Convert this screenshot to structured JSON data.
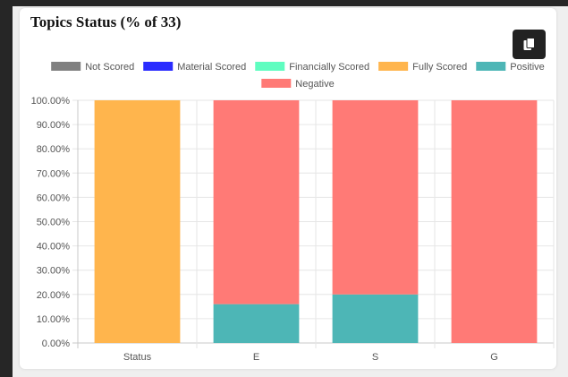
{
  "card": {
    "title": "Topics Status (% of 33)"
  },
  "icons": {
    "copy": "copy-icon"
  },
  "chart_data": {
    "type": "bar",
    "stacked": true,
    "categories": [
      "Status",
      "E",
      "S",
      "G"
    ],
    "series": [
      {
        "name": "Not Scored",
        "color": "#808080",
        "values": [
          0,
          0,
          0,
          0
        ]
      },
      {
        "name": "Material Scored",
        "color": "#2a2cff",
        "values": [
          0,
          0,
          0,
          0
        ]
      },
      {
        "name": "Financially Scored",
        "color": "#5ffdc0",
        "values": [
          0,
          0,
          0,
          0
        ]
      },
      {
        "name": "Fully Scored",
        "color": "#ffb54d",
        "values": [
          100,
          0,
          0,
          0
        ]
      },
      {
        "name": "Positive",
        "color": "#4db6b6",
        "values": [
          0,
          16,
          20,
          0
        ]
      },
      {
        "name": "Negative",
        "color": "#ff7a76",
        "values": [
          0,
          84,
          80,
          100
        ]
      }
    ],
    "ylim": [
      0,
      100
    ],
    "yticks": [
      "0.00%",
      "10.00%",
      "20.00%",
      "30.00%",
      "40.00%",
      "50.00%",
      "60.00%",
      "70.00%",
      "80.00%",
      "90.00%",
      "100.00%"
    ],
    "legend_position": "top",
    "grid": true
  }
}
